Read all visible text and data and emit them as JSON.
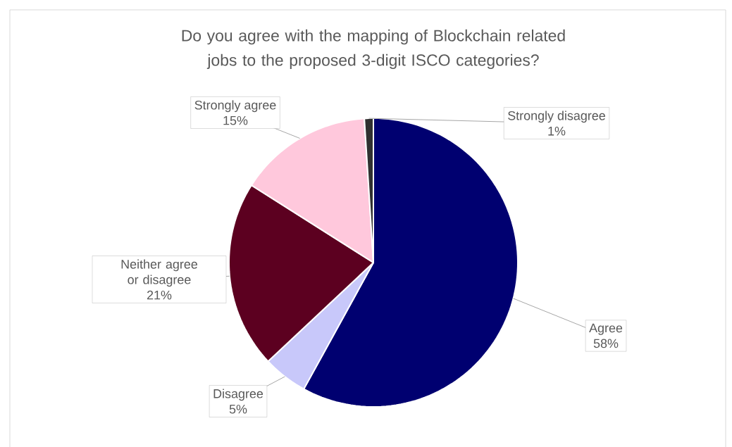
{
  "chart_data": {
    "type": "pie",
    "title": "Do you agree with the mapping of Blockchain related jobs to the proposed 3-digit ISCO categories?",
    "categories": [
      "Agree",
      "Disagree",
      "Neither agree or disagree",
      "Strongly agree",
      "Strongly disagree"
    ],
    "values": [
      58,
      5,
      21,
      15,
      1
    ],
    "value_labels": [
      "58%",
      "5%",
      "21%",
      "15%",
      "1%"
    ],
    "colors": [
      "#000070",
      "#c8c8fa",
      "#5c0020",
      "#ffc8dc",
      "#303030"
    ]
  }
}
